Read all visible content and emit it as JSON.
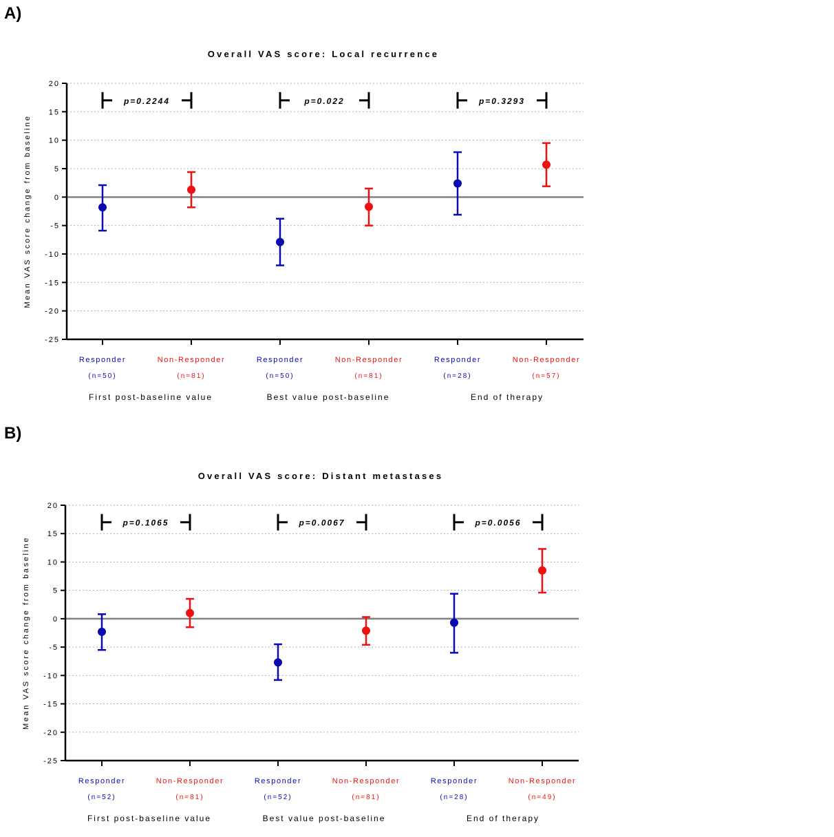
{
  "panel_labels": [
    "A)",
    "B)"
  ],
  "colors": {
    "responder": "#0a0ab0",
    "non_responder": "#ee1111",
    "axis": "#000000",
    "zero_line": "#808080",
    "grid": "#b0b0b0"
  },
  "chart_data": [
    {
      "type": "scatter",
      "panel": "A)",
      "title": "Overall VAS score: Local recurrence",
      "ylabel": "Mean VAS score change from baseline",
      "xlabel": "",
      "ylim": [
        -25,
        20
      ],
      "yticks": [
        20,
        15,
        10,
        5,
        0,
        -5,
        -10,
        -15,
        -20,
        -25
      ],
      "ytick_labels": [
        "20",
        "15",
        "10",
        "5",
        "0",
        "-5",
        "-10",
        "-15",
        "-20",
        "-25"
      ],
      "grid": "horizontal dotted",
      "categories": [
        "Responder",
        "Non-Responder",
        "Responder",
        "Non-Responder",
        "Responder",
        "Non-Responder"
      ],
      "sample_sizes": [
        "(n=50)",
        "(n=81)",
        "(n=50)",
        "(n=81)",
        "(n=28)",
        "(n=57)"
      ],
      "series_type": [
        "responder",
        "non_responder",
        "responder",
        "non_responder",
        "responder",
        "non_responder"
      ],
      "mean": [
        -1.8,
        1.3,
        -7.9,
        -1.7,
        2.4,
        5.7
      ],
      "ci_low": [
        -5.9,
        -1.8,
        -12.0,
        -5.0,
        -3.1,
        1.9
      ],
      "ci_high": [
        2.1,
        4.4,
        -3.8,
        1.5,
        7.9,
        9.5
      ],
      "groups": [
        "First post-baseline value",
        "Best value post-baseline",
        "End of therapy"
      ],
      "p_values": [
        "p=0.2244",
        "p=0.022",
        "p=0.3293"
      ]
    },
    {
      "type": "scatter",
      "panel": "B)",
      "title": "Overall VAS score: Distant metastases",
      "ylabel": "Mean VAS score change from baseline",
      "xlabel": "",
      "ylim": [
        -25,
        20
      ],
      "yticks": [
        20,
        15,
        10,
        5,
        0,
        -5,
        -10,
        -15,
        -20,
        -25
      ],
      "ytick_labels": [
        "20",
        "15",
        "10",
        "5",
        "0",
        "-5",
        "-10",
        "-15",
        "-20",
        "-25"
      ],
      "grid": "horizontal dotted",
      "categories": [
        "Responder",
        "Non-Responder",
        "Responder",
        "Non-Responder",
        "Responder",
        "Non-Responder"
      ],
      "sample_sizes": [
        "(n=52)",
        "(n=81)",
        "(n=52)",
        "(n=81)",
        "(n=28)",
        "(n=49)"
      ],
      "series_type": [
        "responder",
        "non_responder",
        "responder",
        "non_responder",
        "responder",
        "non_responder"
      ],
      "mean": [
        -2.3,
        1.0,
        -7.7,
        -2.1,
        -0.7,
        8.5
      ],
      "ci_low": [
        -5.5,
        -1.5,
        -10.8,
        -4.6,
        -6.0,
        4.6
      ],
      "ci_high": [
        0.8,
        3.5,
        -4.5,
        0.3,
        4.4,
        12.3
      ],
      "groups": [
        "First post-baseline value",
        "Best value post-baseline",
        "End of therapy"
      ],
      "p_values": [
        "p=0.1065",
        "p=0.0067",
        "p=0.0056"
      ]
    }
  ]
}
